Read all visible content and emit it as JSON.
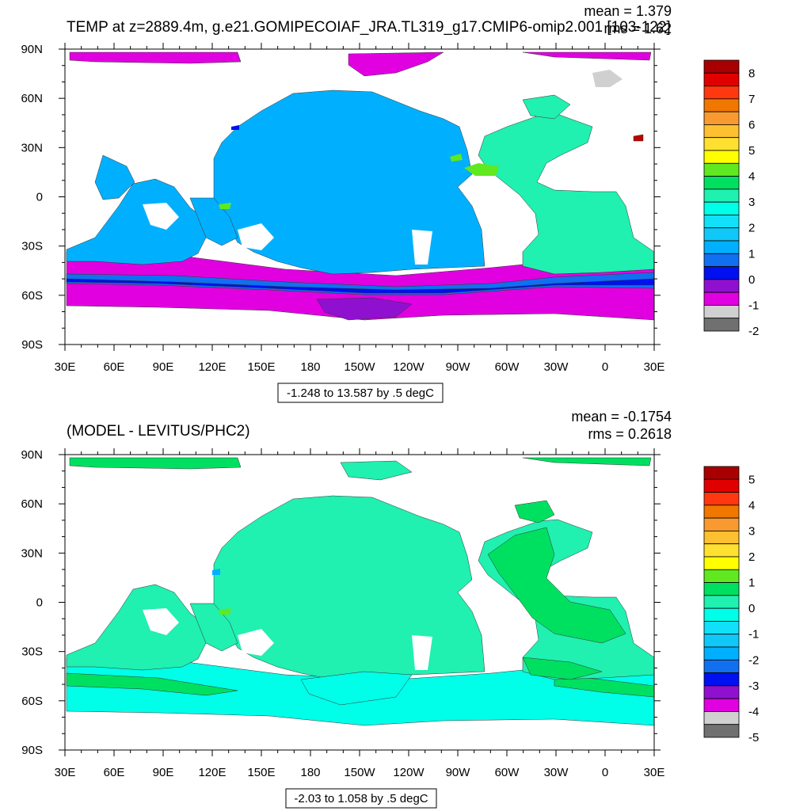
{
  "chart_data": [
    {
      "type": "heatmap",
      "title": "TEMP at z=2889.4m, g.e21.GOMIPECOIAF_JRA.TL319_g17.CMIP6-omip2.001 [103-122]",
      "stats": {
        "mean": "mean = 1.379",
        "rms": "rms = 1.62"
      },
      "range_label": "-1.248 to 13.587 by .5 degC",
      "xlabel": "",
      "ylabel": "",
      "x_ticks": [
        "30E",
        "60E",
        "90E",
        "120E",
        "150E",
        "180",
        "150W",
        "120W",
        "90W",
        "60W",
        "30W",
        "0",
        "30E"
      ],
      "y_ticks": [
        "90N",
        "60N",
        "30N",
        "0",
        "30S",
        "60S",
        "90S"
      ],
      "xlim": [
        "30E",
        "30E"
      ],
      "ylim": [
        "90S",
        "90N"
      ],
      "colorbar": {
        "labels": [
          "8",
          "7",
          "6",
          "5",
          "4",
          "3",
          "2",
          "1",
          "0",
          "-1",
          "-2"
        ],
        "colors": [
          "#a80000",
          "#e00000",
          "#ff3810",
          "#f07800",
          "#f89a30",
          "#fcc030",
          "#ffe030",
          "#ffff00",
          "#60e820",
          "#00e060",
          "#20f0b0",
          "#00ffe8",
          "#10e0f8",
          "#10c8f8",
          "#00b0ff",
          "#1070f0",
          "#0010f0",
          "#9010d0",
          "#e000e0",
          "#d0d0d0",
          "#707070"
        ]
      },
      "field": {
        "arctic": "#e000e0",
        "atlantic": "#20f0b0",
        "indo_pacific": "#00b0ff",
        "southern_band": [
          "#1070f0",
          "#0010f0",
          "#9010d0",
          "#e000e0"
        ],
        "warm_spot": "#c00000"
      }
    },
    {
      "type": "heatmap",
      "title": "(MODEL - LEVITUS/PHC2)",
      "stats": {
        "mean": "mean = -0.1754",
        "rms": "rms = 0.2618"
      },
      "range_label": "-2.03 to 1.058 by .5 degC",
      "xlabel": "",
      "ylabel": "",
      "x_ticks": [
        "30E",
        "60E",
        "90E",
        "120E",
        "150E",
        "180",
        "150W",
        "120W",
        "90W",
        "60W",
        "30W",
        "0",
        "30E"
      ],
      "y_ticks": [
        "90N",
        "60N",
        "30N",
        "0",
        "30S",
        "60S",
        "90S"
      ],
      "xlim": [
        "30E",
        "30E"
      ],
      "ylim": [
        "90S",
        "90N"
      ],
      "colorbar": {
        "labels": [
          "5",
          "4",
          "3",
          "2",
          "1",
          "0",
          "-1",
          "-2",
          "-3",
          "-4",
          "-5"
        ],
        "colors": [
          "#a80000",
          "#e00000",
          "#ff3810",
          "#f07800",
          "#f89a30",
          "#fcc030",
          "#ffe030",
          "#ffff00",
          "#60e820",
          "#00e060",
          "#20f0b0",
          "#00ffe8",
          "#10e0f8",
          "#10c8f8",
          "#00b0ff",
          "#1070f0",
          "#0010f0",
          "#9010d0",
          "#e000e0",
          "#d0d0d0",
          "#707070"
        ]
      },
      "field": {
        "arctic": "#00e060",
        "ocean": "#20f0b0",
        "southern": "#00ffe8",
        "north_atlantic": "#00e060"
      }
    }
  ]
}
